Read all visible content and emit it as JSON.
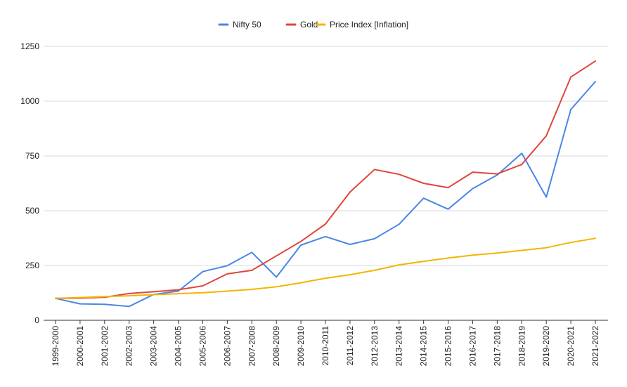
{
  "chart_data": {
    "type": "line",
    "categories": [
      "1999-2000",
      "2000-2001",
      "2001-2002",
      "2002-2003",
      "2003-2004",
      "2004-2005",
      "2005-2006",
      "2006-2007",
      "2007-2008",
      "2008-2009",
      "2009-2010",
      "2010-2011",
      "2011-2012",
      "2012-2013",
      "2013-2014",
      "2014-2015",
      "2015-2016",
      "2016-2017",
      "2017-2018",
      "2018-2019",
      "2019-2020",
      "2020-2021",
      "2021-2022"
    ],
    "series": [
      {
        "name": "Nifty 50",
        "color": "#4a86e8",
        "values": [
          100,
          75,
          73,
          63,
          118,
          133,
          222,
          249,
          310,
          197,
          343,
          382,
          346,
          372,
          438,
          557,
          507,
          601,
          663,
          762,
          562,
          962,
          1089
        ]
      },
      {
        "name": "Gold",
        "color": "#e1453b",
        "values": [
          100,
          101,
          105,
          122,
          130,
          139,
          157,
          212,
          228,
          294,
          360,
          439,
          585,
          688,
          666,
          625,
          605,
          676,
          668,
          711,
          842,
          1110,
          1183
        ]
      },
      {
        "name": "Price Index [Inflation]",
        "color": "#f4b400",
        "values": [
          100,
          104,
          108,
          112,
          117,
          121,
          126,
          133,
          141,
          153,
          171,
          192,
          208,
          228,
          253,
          269,
          284,
          297,
          307,
          319,
          331,
          355,
          374
        ]
      }
    ],
    "y_ticks": [
      0,
      250,
      500,
      750,
      1000,
      1250
    ],
    "y_tick_labels": [
      "0",
      "250",
      "500",
      "750",
      "1000",
      "1250"
    ],
    "ylim": [
      0,
      1250
    ],
    "grid": true,
    "legend_position": "top-center"
  }
}
